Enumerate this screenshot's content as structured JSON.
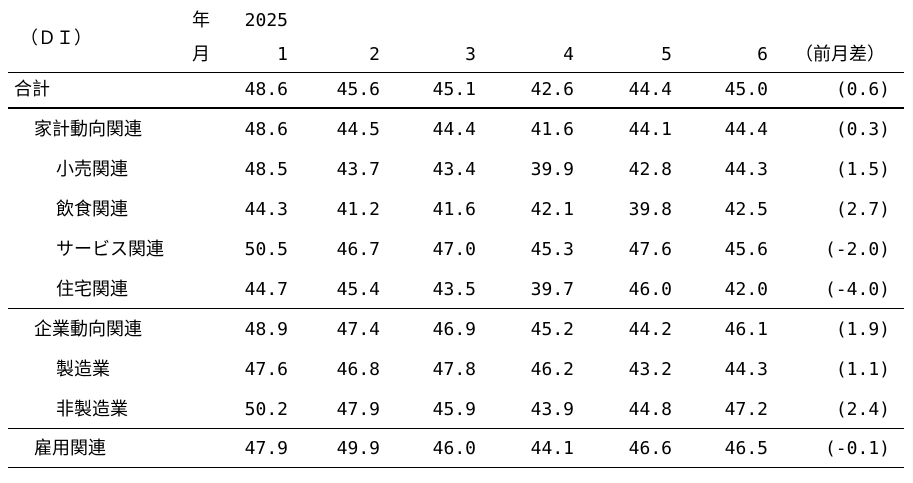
{
  "header": {
    "di_label": "（ＤＩ）",
    "year_label": "年",
    "month_label": "月",
    "year_value": "2025",
    "months": [
      "1",
      "2",
      "3",
      "4",
      "5",
      "6"
    ],
    "diff_label": "（前月差）"
  },
  "rows": [
    {
      "label": "合計",
      "values": [
        "48.6",
        "45.6",
        "45.1",
        "42.6",
        "44.4",
        "45.0"
      ],
      "diff": "(0.6)"
    },
    {
      "label": "家計動向関連",
      "values": [
        "48.6",
        "44.5",
        "44.4",
        "41.6",
        "44.1",
        "44.4"
      ],
      "diff": "(0.3)"
    },
    {
      "label": "小売関連",
      "values": [
        "48.5",
        "43.7",
        "43.4",
        "39.9",
        "42.8",
        "44.3"
      ],
      "diff": "(1.5)"
    },
    {
      "label": "飲食関連",
      "values": [
        "44.3",
        "41.2",
        "41.6",
        "42.1",
        "39.8",
        "42.5"
      ],
      "diff": "(2.7)"
    },
    {
      "label": "サービス関連",
      "values": [
        "50.5",
        "46.7",
        "47.0",
        "45.3",
        "47.6",
        "45.6"
      ],
      "diff": "(-2.0)"
    },
    {
      "label": "住宅関連",
      "values": [
        "44.7",
        "45.4",
        "43.5",
        "39.7",
        "46.0",
        "42.0"
      ],
      "diff": "(-4.0)"
    },
    {
      "label": "企業動向関連",
      "values": [
        "48.9",
        "47.4",
        "46.9",
        "45.2",
        "44.2",
        "46.1"
      ],
      "diff": "(1.9)"
    },
    {
      "label": "製造業",
      "values": [
        "47.6",
        "46.8",
        "47.8",
        "46.2",
        "43.2",
        "44.3"
      ],
      "diff": "(1.1)"
    },
    {
      "label": "非製造業",
      "values": [
        "50.2",
        "47.9",
        "45.9",
        "43.9",
        "44.8",
        "47.2"
      ],
      "diff": "(2.4)"
    },
    {
      "label": "雇用関連",
      "values": [
        "47.9",
        "49.9",
        "46.0",
        "44.1",
        "46.6",
        "46.5"
      ],
      "diff": "(-0.1)"
    }
  ]
}
